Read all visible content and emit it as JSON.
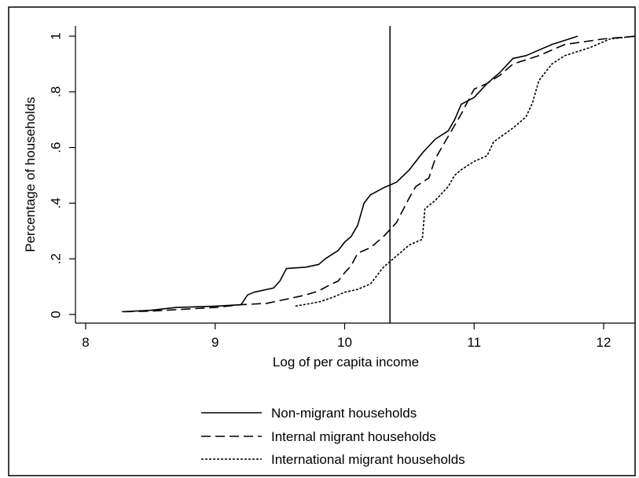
{
  "chart_data": {
    "type": "line",
    "title": "",
    "xlabel": "Log of per capita income",
    "ylabel": "Percentage of households",
    "xlim": [
      8,
      12.25
    ],
    "ylim": [
      0,
      1
    ],
    "x_ticks": [
      8,
      9,
      10,
      11,
      12
    ],
    "x_tick_labels": [
      "8",
      "9",
      "10",
      "11",
      "12"
    ],
    "y_ticks": [
      0,
      0.2,
      0.4,
      0.6,
      0.8,
      1
    ],
    "y_tick_labels": [
      "0",
      ".2",
      ".4",
      ".6",
      ".8",
      "1"
    ],
    "grid": false,
    "legend_position": "bottom",
    "reference_line": {
      "x": 10.35,
      "orientation": "vertical"
    },
    "series": [
      {
        "name": "Non-migrant households",
        "style": "solid",
        "points": [
          [
            8.28,
            0.01
          ],
          [
            8.5,
            0.015
          ],
          [
            8.7,
            0.025
          ],
          [
            9.0,
            0.03
          ],
          [
            9.2,
            0.035
          ],
          [
            9.25,
            0.07
          ],
          [
            9.3,
            0.08
          ],
          [
            9.45,
            0.095
          ],
          [
            9.5,
            0.12
          ],
          [
            9.55,
            0.165
          ],
          [
            9.7,
            0.17
          ],
          [
            9.8,
            0.18
          ],
          [
            9.85,
            0.2
          ],
          [
            9.95,
            0.23
          ],
          [
            10.0,
            0.26
          ],
          [
            10.05,
            0.28
          ],
          [
            10.1,
            0.32
          ],
          [
            10.15,
            0.4
          ],
          [
            10.2,
            0.43
          ],
          [
            10.3,
            0.455
          ],
          [
            10.4,
            0.475
          ],
          [
            10.5,
            0.52
          ],
          [
            10.6,
            0.58
          ],
          [
            10.7,
            0.63
          ],
          [
            10.8,
            0.66
          ],
          [
            10.85,
            0.7
          ],
          [
            10.9,
            0.755
          ],
          [
            11.0,
            0.78
          ],
          [
            11.1,
            0.83
          ],
          [
            11.2,
            0.87
          ],
          [
            11.3,
            0.92
          ],
          [
            11.4,
            0.93
          ],
          [
            11.5,
            0.95
          ],
          [
            11.6,
            0.97
          ],
          [
            11.8,
            1.0
          ]
        ]
      },
      {
        "name": "Internal migrant households",
        "style": "dashed",
        "points": [
          [
            8.3,
            0.01
          ],
          [
            8.5,
            0.012
          ],
          [
            8.8,
            0.02
          ],
          [
            9.0,
            0.025
          ],
          [
            9.2,
            0.035
          ],
          [
            9.4,
            0.04
          ],
          [
            9.6,
            0.06
          ],
          [
            9.7,
            0.07
          ],
          [
            9.8,
            0.085
          ],
          [
            9.9,
            0.11
          ],
          [
            9.95,
            0.12
          ],
          [
            10.0,
            0.15
          ],
          [
            10.05,
            0.175
          ],
          [
            10.1,
            0.22
          ],
          [
            10.2,
            0.24
          ],
          [
            10.3,
            0.28
          ],
          [
            10.4,
            0.33
          ],
          [
            10.5,
            0.42
          ],
          [
            10.55,
            0.46
          ],
          [
            10.6,
            0.475
          ],
          [
            10.65,
            0.49
          ],
          [
            10.7,
            0.56
          ],
          [
            10.8,
            0.64
          ],
          [
            10.9,
            0.72
          ],
          [
            11.0,
            0.81
          ],
          [
            11.1,
            0.83
          ],
          [
            11.2,
            0.86
          ],
          [
            11.3,
            0.9
          ],
          [
            11.5,
            0.93
          ],
          [
            11.7,
            0.97
          ],
          [
            12.0,
            0.99
          ],
          [
            12.25,
            1.0
          ]
        ]
      },
      {
        "name": "International migrant households",
        "style": "dotted",
        "points": [
          [
            9.62,
            0.03
          ],
          [
            9.8,
            0.045
          ],
          [
            9.9,
            0.06
          ],
          [
            10.0,
            0.08
          ],
          [
            10.1,
            0.09
          ],
          [
            10.2,
            0.11
          ],
          [
            10.3,
            0.17
          ],
          [
            10.4,
            0.21
          ],
          [
            10.5,
            0.25
          ],
          [
            10.6,
            0.27
          ],
          [
            10.62,
            0.38
          ],
          [
            10.7,
            0.41
          ],
          [
            10.8,
            0.46
          ],
          [
            10.85,
            0.5
          ],
          [
            10.9,
            0.52
          ],
          [
            11.0,
            0.55
          ],
          [
            11.1,
            0.57
          ],
          [
            11.15,
            0.62
          ],
          [
            11.3,
            0.67
          ],
          [
            11.4,
            0.71
          ],
          [
            11.45,
            0.76
          ],
          [
            11.5,
            0.84
          ],
          [
            11.6,
            0.9
          ],
          [
            11.7,
            0.93
          ],
          [
            11.9,
            0.96
          ],
          [
            12.05,
            0.99
          ],
          [
            12.25,
            1.0
          ]
        ]
      }
    ]
  }
}
